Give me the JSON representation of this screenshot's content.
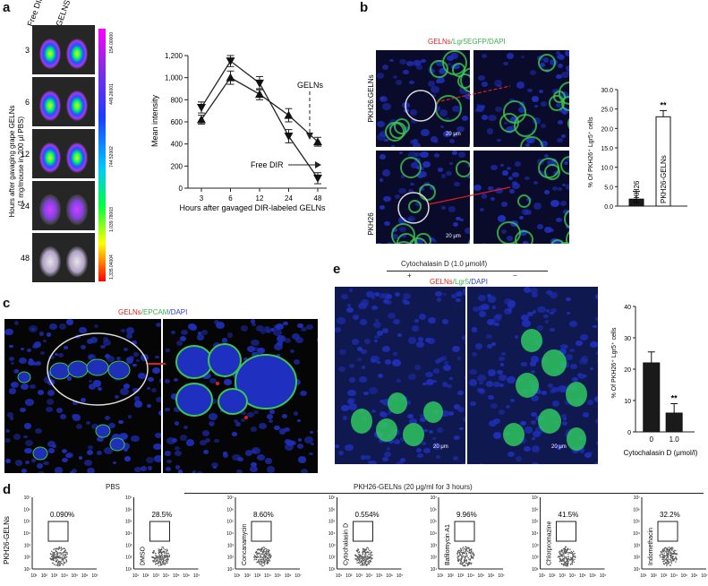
{
  "panel_labels": {
    "a": "a",
    "b": "b",
    "c": "c",
    "d": "d",
    "e": "e"
  },
  "panel_a": {
    "col_free": "Free DIR",
    "col_gelns": "GELNS",
    "times": [
      "3",
      "6",
      "12",
      "24",
      "48"
    ],
    "ylabel_line1": "Hours after gavaging grape GELNs",
    "ylabel_line2": "(1 mg/mouse in 200 μl PBS)",
    "scale_values": [
      "154.00000",
      "449.26001",
      "744.52002",
      "1,039.78003",
      "1,335.04004"
    ]
  },
  "panel_b": {
    "title_gelns": "GELNs",
    "title_rest": "/Lgr5EGFP/DAPI",
    "row1": "PKH26:GELNs",
    "row2": "PKH26",
    "scale1": "20 μm",
    "scale2": "20 μm"
  },
  "panel_c": {
    "title_gelns": "GELNs",
    "title_epcam": "/EPCAM",
    "title_dapi": "/DAPI"
  },
  "panel_e": {
    "top_label": "Cytochalasin D (1.0 μmol/l)",
    "plus": "+",
    "minus": "−",
    "title_gelns": "GELNs",
    "title_lgr5": "/Lgr5",
    "title_dapi": "/DAPI",
    "scale1": "20 μm",
    "scale2": "20 μm"
  },
  "panel_d": {
    "pbs": "PBS",
    "treat_header": "PKH26-GELNs (20 μg/ml for 3 hours)",
    "ylabel": "PKH26-GELNs",
    "y_ticks": [
      "10⁷",
      "10⁶",
      "10⁵",
      "10⁴",
      "10³",
      "10²",
      "10¹"
    ],
    "x_ticks": [
      "10¹",
      "10²",
      "10³",
      "10⁴",
      "10⁵",
      "10⁶",
      "10⁷"
    ],
    "plots": [
      {
        "pct": "0.090%",
        "label": ""
      },
      {
        "pct": "28.5%",
        "label": "DMSO"
      },
      {
        "pct": "8.60%",
        "label": "Concanamycin"
      },
      {
        "pct": "0.554%",
        "label": "Cytochalasin D"
      },
      {
        "pct": "9.96%",
        "label": "Bafilomycin A1"
      },
      {
        "pct": "41.5%",
        "label": "Chlorpromazine"
      },
      {
        "pct": "32.2%",
        "label": "Indomethacin"
      }
    ]
  },
  "colors": {
    "line": "#222222",
    "red": "#e02020",
    "green": "#39b54a",
    "blue": "#2b3fd0",
    "bar_dark": "#1a1a1a"
  },
  "chart_data": [
    {
      "type": "line",
      "x": [
        "3",
        "6",
        "12",
        "24",
        "48"
      ],
      "xlabel": "Hours after gavaged DIR-labeled GELNs",
      "ylabel": "Mean intensity",
      "ylim": [
        0,
        1200
      ],
      "yticks": [
        "0",
        "200",
        "400",
        "600",
        "800",
        "1,000",
        "1,200"
      ],
      "series": [
        {
          "name": "GELNs",
          "marker": "triangle-up",
          "values": [
            620,
            1000,
            850,
            660,
            420
          ],
          "errors": [
            40,
            60,
            50,
            60,
            40
          ]
        },
        {
          "name": "Free DIR",
          "marker": "triangle-down",
          "values": [
            730,
            1150,
            950,
            470,
            90
          ],
          "errors": [
            50,
            50,
            60,
            60,
            50
          ]
        }
      ]
    },
    {
      "type": "bar",
      "categories": [
        "PKH26",
        "PKH26-GELNs"
      ],
      "values": [
        1.8,
        23
      ],
      "errors": [
        2,
        1.6
      ],
      "ylabel": "% Of PKH26⁺ Lgr5⁺ cells",
      "ylim": [
        0,
        30
      ],
      "yticks": [
        "0.0",
        "5.0",
        "10.0",
        "15.0",
        "20.0",
        "25.0",
        "30.0"
      ],
      "significance": "**"
    },
    {
      "type": "bar",
      "categories": [
        "0",
        "1.0"
      ],
      "values": [
        22,
        6
      ],
      "errors": [
        3.5,
        3
      ],
      "ylabel": "% Of PKH26⁺ Lgr5⁺ cells",
      "xlabel": "Cytochalasin D (μmol/l)",
      "ylim": [
        0,
        40
      ],
      "yticks": [
        "0",
        "10",
        "20",
        "30",
        "40"
      ],
      "significance": "**"
    }
  ]
}
